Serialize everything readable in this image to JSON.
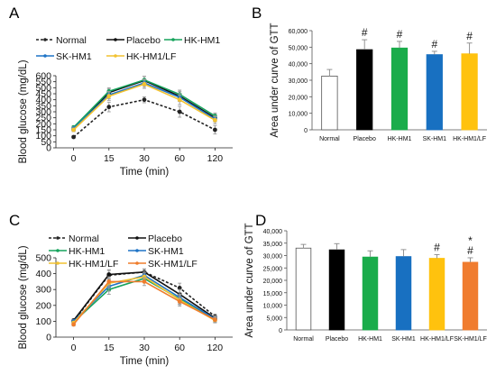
{
  "panel_labels": [
    "A",
    "B",
    "C",
    "D"
  ],
  "chart_data": [
    {
      "panel": "A",
      "type": "line",
      "xlabel": "Time (min)",
      "ylabel": "Blood glucose (mg/dL)",
      "categories": [
        "0",
        "15",
        "30",
        "60",
        "120"
      ],
      "ylim": [
        0,
        600
      ],
      "yticks": [
        "0",
        "50",
        "100",
        "150",
        "200",
        "250",
        "300",
        "350",
        "400",
        "450",
        "500",
        "550",
        "600"
      ],
      "legend_position": "top",
      "series": [
        {
          "name": "Normal",
          "color": "#222222",
          "dash": true,
          "values": [
            90,
            340,
            400,
            300,
            150
          ],
          "err": [
            10,
            40,
            25,
            45,
            35
          ]
        },
        {
          "name": "Placebo",
          "color": "#111111",
          "dash": false,
          "values": [
            150,
            460,
            560,
            430,
            250
          ],
          "err": [
            15,
            30,
            35,
            40,
            30
          ]
        },
        {
          "name": "HK-HM1",
          "color": "#16a35c",
          "dash": false,
          "values": [
            170,
            470,
            565,
            445,
            265
          ],
          "err": [
            15,
            30,
            30,
            35,
            25
          ]
        },
        {
          "name": "SK-HM1",
          "color": "#1f74c6",
          "dash": false,
          "values": [
            160,
            440,
            540,
            420,
            240
          ],
          "err": [
            15,
            30,
            30,
            35,
            25
          ]
        },
        {
          "name": "HK-HM1/LF",
          "color": "#f2c230",
          "dash": false,
          "values": [
            150,
            430,
            530,
            400,
            230
          ],
          "err": [
            15,
            35,
            35,
            40,
            30
          ]
        }
      ]
    },
    {
      "panel": "B",
      "type": "bar",
      "ylabel": "Area under curve of GTT",
      "categories": [
        "Normal",
        "Placebo",
        "HK-HM1",
        "SK-HM1",
        "HK-HM1/LF"
      ],
      "values": [
        32500,
        48500,
        49500,
        45500,
        46000
      ],
      "errors": [
        4000,
        6000,
        4000,
        2000,
        6500
      ],
      "colors": [
        "#ffffff",
        "#000000",
        "#1aac4b",
        "#1870c1",
        "#ffc20e"
      ],
      "annotations": [
        "",
        "#",
        "#",
        "#",
        "#"
      ],
      "ylim": [
        0,
        60000
      ],
      "yticks": [
        "0",
        "10,000",
        "20,000",
        "30,000",
        "40,000",
        "50,000",
        "60,000"
      ]
    },
    {
      "panel": "C",
      "type": "line",
      "xlabel": "Time (min)",
      "ylabel": "Blood glucose (mg/dL)",
      "categories": [
        "0",
        "15",
        "30",
        "60",
        "120"
      ],
      "ylim": [
        0,
        500
      ],
      "yticks": [
        "0",
        "100",
        "200",
        "300",
        "400",
        "500"
      ],
      "legend_position": "top",
      "series": [
        {
          "name": "Normal",
          "color": "#222222",
          "dash": true,
          "values": [
            100,
            390,
            410,
            310,
            130
          ],
          "err": [
            10,
            30,
            20,
            30,
            15
          ]
        },
        {
          "name": "Placebo",
          "color": "#111111",
          "dash": false,
          "values": [
            105,
            395,
            410,
            270,
            120
          ],
          "err": [
            10,
            30,
            20,
            30,
            15
          ]
        },
        {
          "name": "HK-HM1",
          "color": "#16a35c",
          "dash": false,
          "values": [
            95,
            300,
            370,
            240,
            110
          ],
          "err": [
            10,
            30,
            25,
            30,
            15
          ]
        },
        {
          "name": "SK-HM1",
          "color": "#1f74c6",
          "dash": false,
          "values": [
            100,
            320,
            390,
            250,
            115
          ],
          "err": [
            10,
            30,
            25,
            30,
            15
          ]
        },
        {
          "name": "HK-HM1/LF",
          "color": "#f2c230",
          "dash": false,
          "values": [
            90,
            340,
            380,
            235,
            105
          ],
          "err": [
            10,
            30,
            25,
            30,
            15
          ]
        },
        {
          "name": "SK-HM1/LF",
          "color": "#ef7d2c",
          "dash": false,
          "values": [
            80,
            350,
            350,
            225,
            110
          ],
          "err": [
            10,
            30,
            25,
            30,
            15
          ]
        }
      ]
    },
    {
      "panel": "D",
      "type": "bar",
      "ylabel": "Area under curve of GTT",
      "categories": [
        "Normal",
        "Placebo",
        "HK-HM1",
        "SK-HM1",
        "HK-HM1/LF",
        "SK-HM1/LF"
      ],
      "values": [
        33000,
        32300,
        29400,
        29600,
        28900,
        27300
      ],
      "errors": [
        1500,
        2500,
        2500,
        2800,
        1500,
        1800
      ],
      "colors": [
        "#ffffff",
        "#000000",
        "#1aac4b",
        "#1870c1",
        "#ffc20e",
        "#f07c2f"
      ],
      "annotations": [
        "",
        "",
        "",
        "",
        "#",
        "*\n#"
      ],
      "ylim": [
        0,
        40000
      ],
      "yticks": [
        "0",
        "5,000",
        "10,000",
        "15,000",
        "20,000",
        "25,000",
        "30,000",
        "35,000",
        "40,000"
      ]
    }
  ]
}
